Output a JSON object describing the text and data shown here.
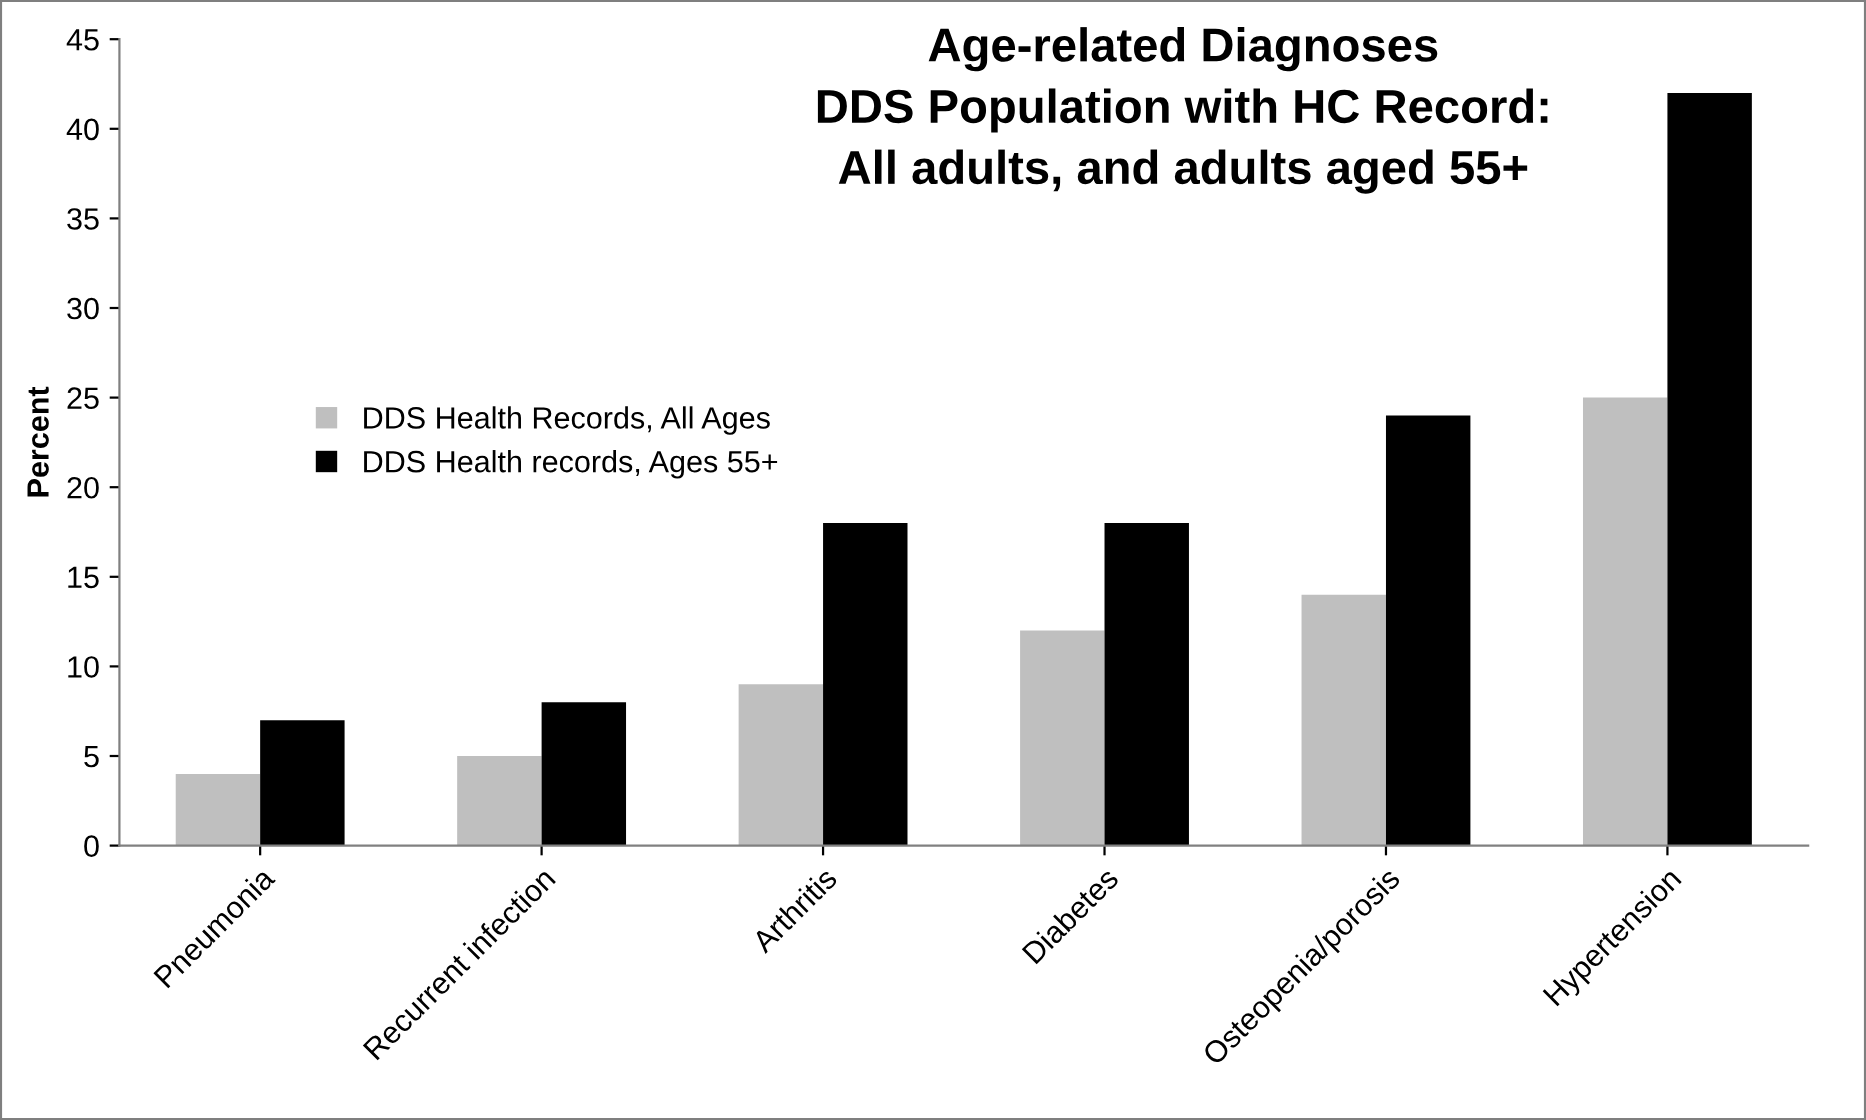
{
  "chart_data": {
    "type": "bar",
    "title": "Age-related Diagnoses\nDDS Population with HC Record:\nAll adults, and adults aged 55+",
    "ylabel": "Percent",
    "categories": [
      "Pneumonia",
      "Recurrent infection",
      "Arthritis",
      "Diabetes",
      "Osteopenia/porosis",
      "Hypertension"
    ],
    "series": [
      {
        "name": "DDS Health Records, All Ages",
        "color": "#bfbfbf",
        "values": [
          4,
          5,
          9,
          12,
          14,
          25
        ]
      },
      {
        "name": "DDS Health records, Ages 55+",
        "color": "#000000",
        "values": [
          7,
          8,
          18,
          18,
          24,
          42
        ]
      }
    ],
    "ylim": [
      0,
      45
    ],
    "yticks": [
      0,
      5,
      10,
      15,
      20,
      25,
      30,
      35,
      40,
      45
    ],
    "grid": false,
    "legend": "left"
  }
}
